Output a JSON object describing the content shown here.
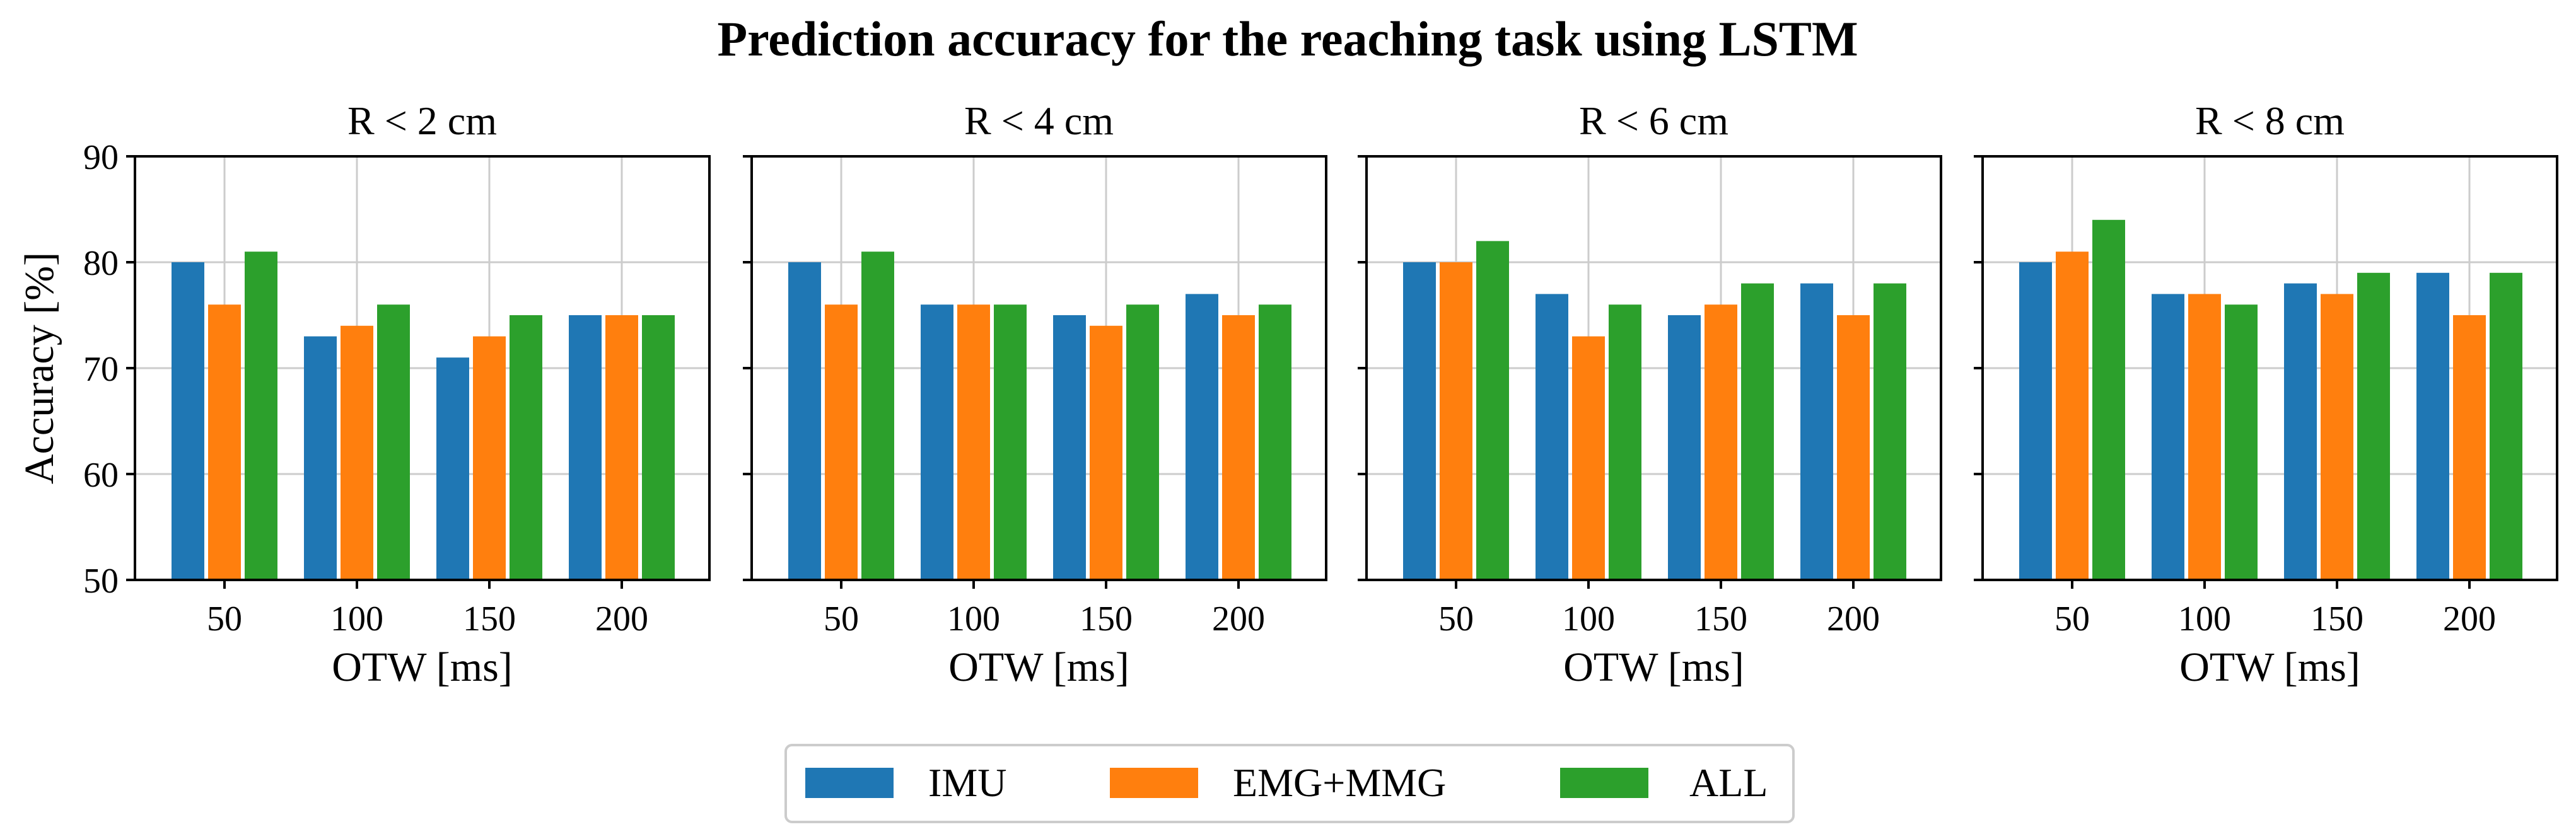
{
  "title": "Prediction accuracy for the reaching task using LSTM",
  "chart_data": [
    {
      "type": "bar",
      "title": "R < 2 cm",
      "xlabel": "OTW [ms]",
      "ylabel": "Accuracy [%]",
      "ylim": [
        50,
        90
      ],
      "yticks": [
        50,
        60,
        70,
        80,
        90
      ],
      "categories": [
        "50",
        "100",
        "150",
        "200"
      ],
      "grid": true,
      "series": [
        {
          "name": "IMU",
          "values": [
            80,
            73,
            71,
            75
          ]
        },
        {
          "name": "EMG+MMG",
          "values": [
            76,
            74,
            73,
            75
          ]
        },
        {
          "name": "ALL",
          "values": [
            81,
            76,
            75,
            75
          ]
        }
      ]
    },
    {
      "type": "bar",
      "title": "R < 4 cm",
      "xlabel": "OTW [ms]",
      "ylabel": "",
      "ylim": [
        50,
        90
      ],
      "yticks": [
        50,
        60,
        70,
        80,
        90
      ],
      "categories": [
        "50",
        "100",
        "150",
        "200"
      ],
      "grid": true,
      "series": [
        {
          "name": "IMU",
          "values": [
            80,
            76,
            75,
            77
          ]
        },
        {
          "name": "EMG+MMG",
          "values": [
            76,
            76,
            74,
            75
          ]
        },
        {
          "name": "ALL",
          "values": [
            81,
            76,
            76,
            76
          ]
        }
      ]
    },
    {
      "type": "bar",
      "title": "R < 6 cm",
      "xlabel": "OTW [ms]",
      "ylabel": "",
      "ylim": [
        50,
        90
      ],
      "yticks": [
        50,
        60,
        70,
        80,
        90
      ],
      "categories": [
        "50",
        "100",
        "150",
        "200"
      ],
      "grid": true,
      "series": [
        {
          "name": "IMU",
          "values": [
            80,
            77,
            75,
            78
          ]
        },
        {
          "name": "EMG+MMG",
          "values": [
            80,
            73,
            76,
            75
          ]
        },
        {
          "name": "ALL",
          "values": [
            82,
            76,
            78,
            78
          ]
        }
      ]
    },
    {
      "type": "bar",
      "title": "R < 8 cm",
      "xlabel": "OTW [ms]",
      "ylabel": "",
      "ylim": [
        50,
        90
      ],
      "yticks": [
        50,
        60,
        70,
        80,
        90
      ],
      "categories": [
        "50",
        "100",
        "150",
        "200"
      ],
      "grid": true,
      "series": [
        {
          "name": "IMU",
          "values": [
            80,
            77,
            78,
            79
          ]
        },
        {
          "name": "EMG+MMG",
          "values": [
            81,
            77,
            77,
            75
          ]
        },
        {
          "name": "ALL",
          "values": [
            84,
            76,
            79,
            79
          ]
        }
      ]
    }
  ],
  "legend": {
    "placement": "bottom-center",
    "entries": [
      {
        "label": "IMU",
        "color": "#1f77b4"
      },
      {
        "label": "EMG+MMG",
        "color": "#ff7f0e"
      },
      {
        "label": "ALL",
        "color": "#2ca02c"
      }
    ]
  },
  "colors": {
    "series": [
      "#1f77b4",
      "#ff7f0e",
      "#2ca02c"
    ],
    "grid": "#cccccc",
    "axis": "#000000"
  }
}
